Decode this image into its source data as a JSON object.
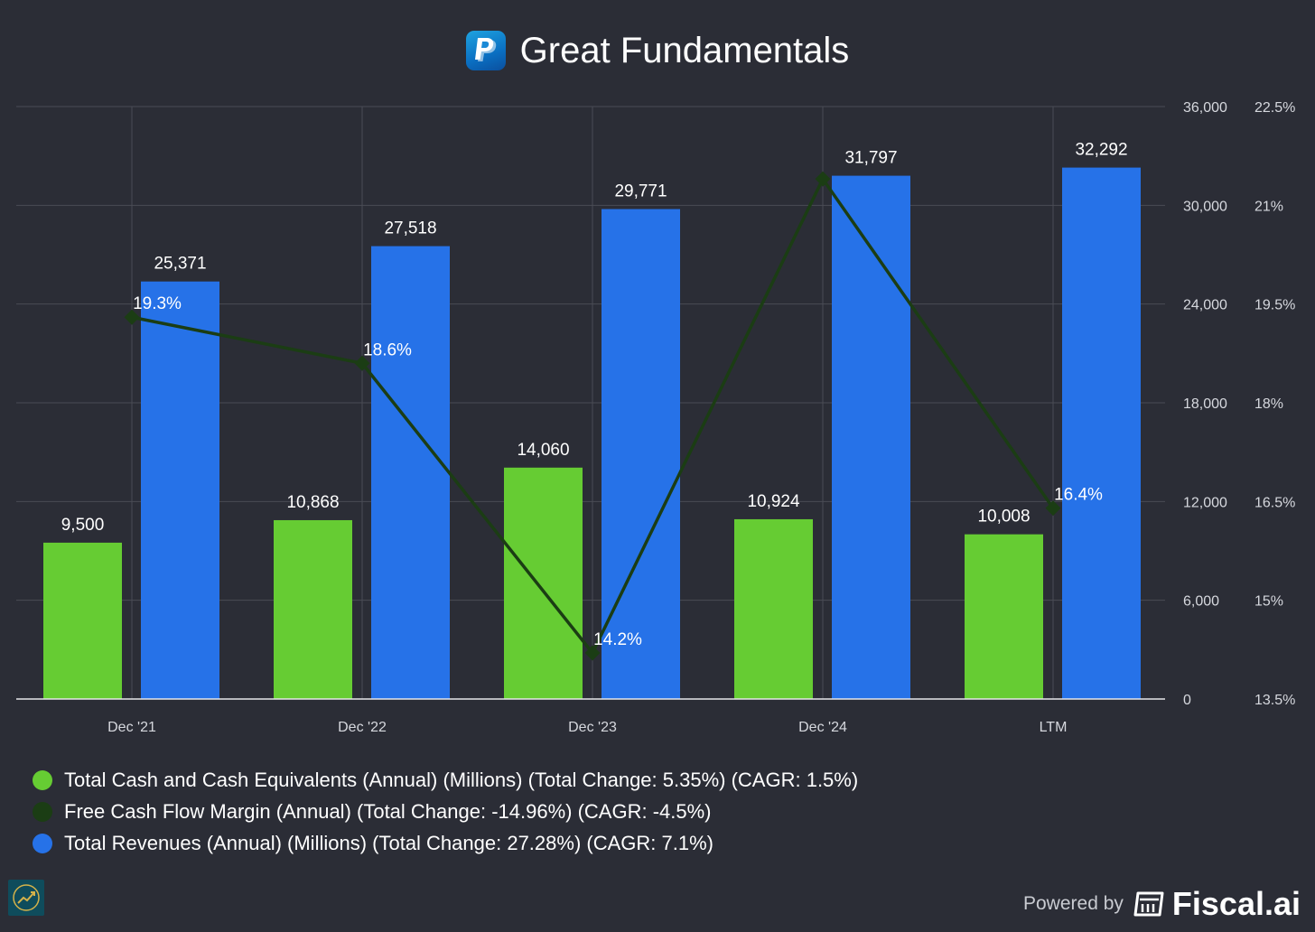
{
  "title": "Great Fundamentals",
  "icons": {
    "logo": "paypal-logo-icon",
    "badge": "chart-growth-icon",
    "brand": "fiscal-calculator-icon"
  },
  "colors": {
    "background": "#2b2d36",
    "cash": "#66cc33",
    "revenue": "#2672e8",
    "fcf_margin": "#1b3d14",
    "grid": "#4a4c55",
    "axis_text": "#d6d8de"
  },
  "chart_data": {
    "type": "bar",
    "title": "Great Fundamentals",
    "categories": [
      "Dec '21",
      "Dec '22",
      "Dec '23",
      "Dec '24",
      "LTM"
    ],
    "series": [
      {
        "name": "Total Cash and Cash Equivalents (Annual) (Millions) (Total Change: 5.35%) (CAGR: 1.5%)",
        "type": "bar",
        "axis": "left",
        "values": [
          9500,
          10868,
          14060,
          10924,
          10008
        ],
        "labels": [
          "9,500",
          "10,868",
          "14,060",
          "10,924",
          "10,008"
        ]
      },
      {
        "name": "Free Cash Flow Margin (Annual) (Total Change: -14.96%) (CAGR: -4.5%)",
        "type": "line",
        "axis": "right",
        "values": [
          19.3,
          18.6,
          14.2,
          21.4,
          16.4
        ],
        "labels": [
          "19.3%",
          "18.6%",
          "14.2%",
          "",
          "16.4%"
        ]
      },
      {
        "name": "Total Revenues (Annual) (Millions) (Total Change: 27.28%) (CAGR: 7.1%)",
        "type": "bar",
        "axis": "left",
        "values": [
          25371,
          27518,
          29771,
          31797,
          32292
        ],
        "labels": [
          "25,371",
          "27,518",
          "29,771",
          "31,797",
          "32,292"
        ]
      }
    ],
    "y_left": {
      "range": [
        0,
        36000
      ],
      "ticks": [
        "0",
        "6,000",
        "12,000",
        "18,000",
        "24,000",
        "30,000",
        "36,000"
      ]
    },
    "y_right": {
      "range": [
        13.5,
        22.5
      ],
      "ticks": [
        "13.5%",
        "15%",
        "16.5%",
        "18%",
        "19.5%",
        "21%",
        "22.5%"
      ]
    },
    "grid": true,
    "legend_position": "bottom-left"
  },
  "footer": {
    "powered_by": "Powered by",
    "brand": "Fiscal.ai"
  }
}
